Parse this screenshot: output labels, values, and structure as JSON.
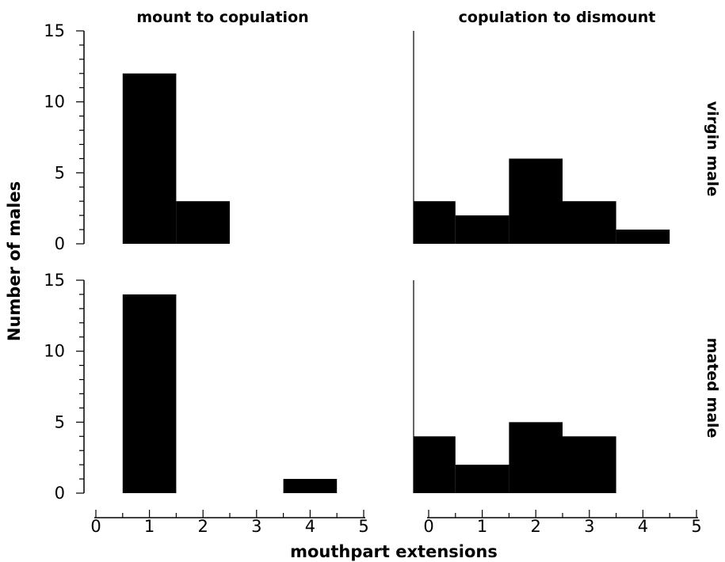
{
  "figure": {
    "ylabel": "Number of males",
    "xlabel": "mouthpart extensions",
    "column_titles": [
      "mount to copulation",
      "copulation to dismount"
    ],
    "row_labels": [
      "virgin male",
      "mated male"
    ],
    "bar_color": "#000000"
  },
  "chart_data": [
    {
      "type": "bar",
      "title": "mount to copulation",
      "row": "virgin male",
      "x": [
        0,
        1,
        2,
        3,
        4
      ],
      "values": [
        0,
        12,
        3,
        0,
        0
      ],
      "xlim": [
        0,
        5
      ],
      "ylim": [
        0,
        15
      ],
      "yticks": [
        0,
        5,
        10,
        15
      ],
      "xticks": [
        0,
        1,
        2,
        3,
        4,
        5
      ]
    },
    {
      "type": "bar",
      "title": "copulation to dismount",
      "row": "virgin male",
      "x": [
        0,
        1,
        2,
        3,
        4
      ],
      "values": [
        3,
        2,
        6,
        3,
        1
      ],
      "xlim": [
        0,
        5
      ],
      "ylim": [
        0,
        15
      ],
      "yticks": [
        0,
        5,
        10,
        15
      ],
      "xticks": [
        0,
        1,
        2,
        3,
        4,
        5
      ]
    },
    {
      "type": "bar",
      "title": "mount to copulation",
      "row": "mated male",
      "x": [
        0,
        1,
        2,
        3,
        4
      ],
      "values": [
        0,
        14,
        0,
        0,
        1
      ],
      "xlim": [
        0,
        5
      ],
      "ylim": [
        0,
        15
      ],
      "yticks": [
        0,
        5,
        10,
        15
      ],
      "xticks": [
        0,
        1,
        2,
        3,
        4,
        5
      ]
    },
    {
      "type": "bar",
      "title": "copulation to dismount",
      "row": "mated male",
      "x": [
        0,
        1,
        2,
        3,
        4
      ],
      "values": [
        4,
        2,
        5,
        4,
        0
      ],
      "xlim": [
        0,
        5
      ],
      "ylim": [
        0,
        15
      ],
      "yticks": [
        0,
        5,
        10,
        15
      ],
      "xticks": [
        0,
        1,
        2,
        3,
        4,
        5
      ]
    }
  ]
}
